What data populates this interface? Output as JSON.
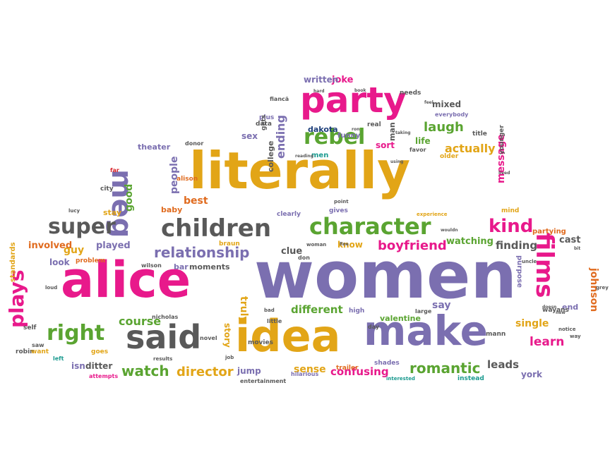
{
  "palette": {
    "pink": "#e8198b",
    "purple": "#7b6fb0",
    "gold": "#e2a517",
    "green": "#5aa431",
    "gray": "#595959",
    "orange": "#e06b1f",
    "teal": "#1b9a8f",
    "navy": "#1e3f7a",
    "red": "#d8232a"
  },
  "words": [
    {
      "text": "women",
      "color": "purple"
    },
    {
      "text": "literally",
      "color": "gold"
    },
    {
      "text": "alice",
      "color": "pink"
    },
    {
      "text": "idea",
      "color": "gold"
    },
    {
      "text": "make",
      "color": "purple"
    },
    {
      "text": "party",
      "color": "pink"
    },
    {
      "text": "said",
      "color": "gray"
    },
    {
      "text": "meg",
      "color": "purple"
    },
    {
      "text": "children",
      "color": "gray"
    },
    {
      "text": "character",
      "color": "green"
    },
    {
      "text": "films",
      "color": "pink"
    },
    {
      "text": "rebel",
      "color": "green"
    },
    {
      "text": "super",
      "color": "gray"
    },
    {
      "text": "right",
      "color": "green"
    },
    {
      "text": "plays",
      "color": "pink"
    },
    {
      "text": "kind",
      "color": "pink"
    },
    {
      "text": "relationship",
      "color": "purple"
    },
    {
      "text": "boyfriend",
      "color": "pink"
    },
    {
      "text": "romantic",
      "color": "green"
    },
    {
      "text": "director",
      "color": "gold"
    },
    {
      "text": "watch",
      "color": "green"
    },
    {
      "text": "learn",
      "color": "pink"
    },
    {
      "text": "laugh",
      "color": "green"
    },
    {
      "text": "actually",
      "color": "gold"
    },
    {
      "text": "different",
      "color": "green"
    },
    {
      "text": "confusing",
      "color": "pink"
    },
    {
      "text": "single",
      "color": "gold"
    },
    {
      "text": "leads",
      "color": "gray"
    },
    {
      "text": "course",
      "color": "green"
    },
    {
      "text": "finding",
      "color": "gray"
    },
    {
      "text": "watching",
      "color": "green"
    },
    {
      "text": "sense",
      "color": "gold"
    },
    {
      "text": "johnson",
      "color": "orange"
    },
    {
      "text": "ending",
      "color": "purple"
    },
    {
      "text": "involved",
      "color": "orange"
    },
    {
      "text": "played",
      "color": "purple"
    },
    {
      "text": "guy",
      "color": "gold"
    },
    {
      "text": "best",
      "color": "orange"
    },
    {
      "text": "good",
      "color": "green"
    },
    {
      "text": "people",
      "color": "purple"
    },
    {
      "text": "message",
      "color": "pink"
    },
    {
      "text": "cast",
      "color": "gray"
    },
    {
      "text": "say",
      "color": "purple"
    },
    {
      "text": "joke",
      "color": "pink"
    },
    {
      "text": "written",
      "color": "purple"
    },
    {
      "text": "mixed",
      "color": "gray"
    },
    {
      "text": "sort",
      "color": "pink"
    },
    {
      "text": "clue",
      "color": "gray"
    },
    {
      "text": "truly",
      "color": "gold"
    },
    {
      "text": "story",
      "color": "gold"
    },
    {
      "text": "isn",
      "color": "purple"
    },
    {
      "text": "ditter",
      "color": "gray"
    },
    {
      "text": "jump",
      "color": "purple"
    },
    {
      "text": "look",
      "color": "purple"
    },
    {
      "text": "know",
      "color": "gold"
    },
    {
      "text": "york",
      "color": "purple"
    },
    {
      "text": "valentine",
      "color": "green"
    },
    {
      "text": "moments",
      "color": "gray"
    },
    {
      "text": "bar",
      "color": "purple"
    },
    {
      "text": "theater",
      "color": "purple"
    },
    {
      "text": "sex",
      "color": "purple"
    },
    {
      "text": "dakota",
      "color": "navy"
    },
    {
      "text": "life",
      "color": "green"
    },
    {
      "text": "man",
      "color": "gray"
    },
    {
      "text": "college",
      "color": "gray"
    },
    {
      "text": "baby",
      "color": "orange"
    },
    {
      "text": "stay",
      "color": "gold"
    },
    {
      "text": "standards",
      "color": "gold"
    },
    {
      "text": "robin",
      "color": "gray"
    },
    {
      "text": "want",
      "color": "gold"
    },
    {
      "text": "goes",
      "color": "gold"
    },
    {
      "text": "shades",
      "color": "purple"
    },
    {
      "text": "instead",
      "color": "teal"
    },
    {
      "text": "partying",
      "color": "orange"
    },
    {
      "text": "mind",
      "color": "gold"
    },
    {
      "text": "clearly",
      "color": "purple"
    },
    {
      "text": "gives",
      "color": "purple"
    },
    {
      "text": "braun",
      "color": "gold"
    },
    {
      "text": "high",
      "color": "purple"
    },
    {
      "text": "end",
      "color": "purple"
    },
    {
      "text": "mann",
      "color": "gray"
    },
    {
      "text": "purpose",
      "color": "purple"
    },
    {
      "text": "plus",
      "color": "purple"
    },
    {
      "text": "data",
      "color": "gray"
    },
    {
      "text": "gets",
      "color": "gray"
    },
    {
      "text": "funny",
      "color": "purple"
    },
    {
      "text": "men",
      "color": "teal"
    },
    {
      "text": "real",
      "color": "gray"
    },
    {
      "text": "title",
      "color": "gray"
    },
    {
      "text": "older",
      "color": "gold"
    },
    {
      "text": "needs",
      "color": "gray"
    },
    {
      "text": "everybody",
      "color": "purple"
    },
    {
      "text": "fiancã",
      "color": "gray"
    },
    {
      "text": "day",
      "color": "gray"
    },
    {
      "text": "problem",
      "color": "orange"
    },
    {
      "text": "self",
      "color": "gray"
    },
    {
      "text": "saw",
      "color": "gray"
    },
    {
      "text": "left",
      "color": "teal"
    },
    {
      "text": "alison",
      "color": "orange"
    },
    {
      "text": "city",
      "color": "gray"
    },
    {
      "text": "far",
      "color": "red"
    },
    {
      "text": "lucy",
      "color": "gray"
    },
    {
      "text": "don",
      "color": "gray"
    },
    {
      "text": "wayans",
      "color": "gray"
    },
    {
      "text": "uncle",
      "color": "gray"
    },
    {
      "text": "way",
      "color": "gray"
    },
    {
      "text": "younger",
      "color": "gray"
    },
    {
      "text": "favor",
      "color": "gray"
    },
    {
      "text": "movies",
      "color": "gray"
    },
    {
      "text": "novel",
      "color": "gray"
    },
    {
      "text": "little",
      "color": "gray"
    },
    {
      "text": "large",
      "color": "gray"
    },
    {
      "text": "nicholas",
      "color": "gray"
    },
    {
      "text": "wilson",
      "color": "gray"
    },
    {
      "text": "donor",
      "color": "gray"
    },
    {
      "text": "trailer",
      "color": "orange"
    },
    {
      "text": "hilarious",
      "color": "purple"
    },
    {
      "text": "entertainment",
      "color": "gray"
    },
    {
      "text": "interested",
      "color": "teal"
    },
    {
      "text": "attempts",
      "color": "pink"
    },
    {
      "text": "results",
      "color": "gray"
    },
    {
      "text": "experience",
      "color": "gold"
    },
    {
      "text": "woman",
      "color": "gray"
    },
    {
      "text": "point",
      "color": "gray"
    },
    {
      "text": "loud",
      "color": "gray"
    },
    {
      "text": "notice",
      "color": "gray"
    },
    {
      "text": "grey",
      "color": "gray"
    },
    {
      "text": "job",
      "color": "gray"
    },
    {
      "text": "bad",
      "color": "gray"
    },
    {
      "text": "reading",
      "color": "gray"
    },
    {
      "text": "book",
      "color": "gray"
    },
    {
      "text": "hard",
      "color": "gray"
    },
    {
      "text": "feel",
      "color": "gray"
    },
    {
      "text": "fine",
      "color": "gray"
    },
    {
      "text": "doesn",
      "color": "gray"
    },
    {
      "text": "new",
      "color": "gray"
    },
    {
      "text": "using",
      "color": "gray"
    },
    {
      "text": "lived",
      "color": "gray"
    },
    {
      "text": "wouldn",
      "color": "gray"
    },
    {
      "text": "bit",
      "color": "gray"
    },
    {
      "text": "ron",
      "color": "gray"
    },
    {
      "text": "taking",
      "color": "gray"
    }
  ]
}
